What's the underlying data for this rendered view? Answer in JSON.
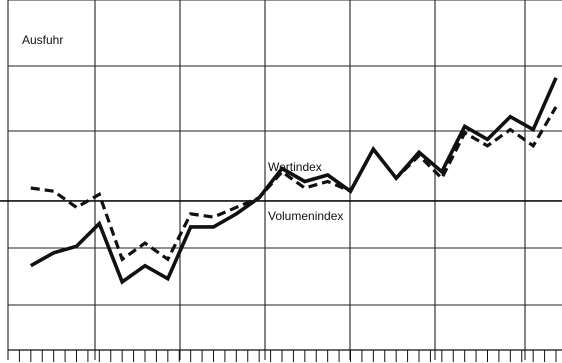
{
  "chart_data": {
    "type": "line",
    "title": "Ausfuhr",
    "xlabel": "",
    "ylabel": "",
    "x": [
      1,
      2,
      3,
      4,
      5,
      6,
      7,
      8,
      9,
      10,
      11,
      12,
      13,
      14,
      15,
      16,
      17,
      18,
      19,
      20,
      21,
      22,
      23,
      24,
      25,
      26,
      27,
      28,
      29,
      30,
      31,
      32,
      33,
      34,
      35,
      36,
      37,
      38,
      39,
      40,
      41,
      42,
      43,
      44,
      45,
      46,
      47,
      48
    ],
    "xlim": [
      0,
      48
    ],
    "ylim": [
      -2.3,
      3.1
    ],
    "y_baseline": 0,
    "grid": true,
    "series": [
      {
        "name": "Wertindex",
        "style": "solid",
        "color": "#111111",
        "x": [
          2,
          4,
          6,
          8,
          10,
          12,
          14,
          16,
          18,
          20,
          22,
          24,
          26,
          28,
          30,
          32,
          34,
          36,
          38,
          40,
          42,
          44,
          46,
          48
        ],
        "values": [
          -1.0,
          -0.8,
          -0.7,
          -0.35,
          -1.25,
          -1.0,
          -1.2,
          -0.4,
          -0.4,
          -0.2,
          0.05,
          0.5,
          0.3,
          0.4,
          0.15,
          0.8,
          0.35,
          0.75,
          0.45,
          1.15,
          0.95,
          1.3,
          1.1,
          1.9
        ]
      },
      {
        "name": "Volumenindex",
        "style": "dashed",
        "color": "#111111",
        "x": [
          2,
          4,
          6,
          8,
          10,
          12,
          14,
          16,
          18,
          20,
          22,
          24,
          26,
          28,
          30,
          32,
          34,
          36,
          38,
          40,
          42,
          44,
          46,
          48
        ],
        "values": [
          0.2,
          0.15,
          -0.1,
          0.1,
          -0.9,
          -0.65,
          -0.9,
          -0.2,
          -0.25,
          -0.1,
          0.05,
          0.45,
          0.2,
          0.3,
          0.15,
          0.8,
          0.35,
          0.7,
          0.35,
          1.05,
          0.85,
          1.1,
          0.85,
          1.45
        ]
      }
    ],
    "annotations": [
      {
        "text": "Wertindex"
      },
      {
        "text": "Volumenindex"
      }
    ]
  }
}
